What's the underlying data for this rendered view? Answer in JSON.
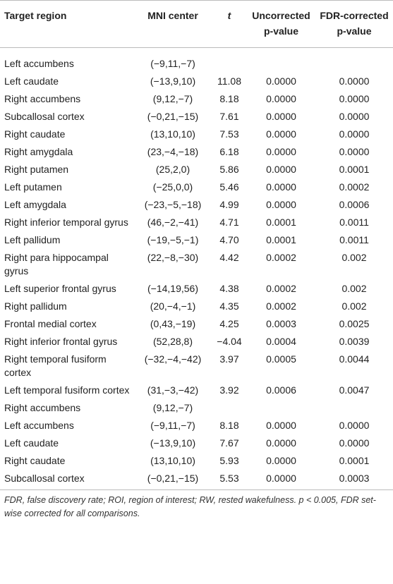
{
  "table": {
    "header": [
      "Target region",
      "MNI center",
      "t",
      [
        "Uncorrected",
        "p-value"
      ],
      [
        "FDR-corrected",
        "p-value"
      ]
    ],
    "rows": [
      [
        "Left accumbens",
        "(−9,11,−7)",
        null,
        null,
        null
      ],
      [
        "Left caudate",
        "(−13,9,10)",
        "11.08",
        "0.0000",
        "0.0000"
      ],
      [
        "Right accumbens",
        "(9,12,−7)",
        "8.18",
        "0.0000",
        "0.0000"
      ],
      [
        "Subcallosal cortex",
        "(−0,21,−15)",
        "7.61",
        "0.0000",
        "0.0000"
      ],
      [
        "Right caudate",
        "(13,10,10)",
        "7.53",
        "0.0000",
        "0.0000"
      ],
      [
        "Right amygdala",
        "(23,−4,−18)",
        "6.18",
        "0.0000",
        "0.0000"
      ],
      [
        "Right putamen",
        "(25,2,0)",
        "5.86",
        "0.0000",
        "0.0001"
      ],
      [
        "Left putamen",
        "(−25,0,0)",
        "5.46",
        "0.0000",
        "0.0002"
      ],
      [
        "Left amygdala",
        "(−23,−5,−18)",
        "4.99",
        "0.0000",
        "0.0006"
      ],
      [
        "Right inferior temporal gyrus",
        "(46,−2,−41)",
        "4.71",
        "0.0001",
        "0.0011"
      ],
      [
        "Left pallidum",
        "(−19,−5,−1)",
        "4.70",
        "0.0001",
        "0.0011"
      ],
      [
        "Right para hippocampal gyrus",
        "(22,−8,−30)",
        "4.42",
        "0.0002",
        "0.002"
      ],
      [
        "Left superior frontal gyrus",
        "(−14,19,56)",
        "4.38",
        "0.0002",
        "0.002"
      ],
      [
        "Right pallidum",
        "(20,−4,−1)",
        "4.35",
        "0.0002",
        "0.002"
      ],
      [
        "Frontal medial cortex",
        "(0,43,−19)",
        "4.25",
        "0.0003",
        "0.0025"
      ],
      [
        "Right inferior frontal gyrus",
        "(52,28,8)",
        "−4.04",
        "0.0004",
        "0.0039"
      ],
      [
        "Right temporal fusiform cortex",
        "(−32,−4,−42)",
        "3.97",
        "0.0005",
        "0.0044"
      ],
      [
        "Left temporal fusiform cortex",
        "(31,−3,−42)",
        "3.92",
        "0.0006",
        "0.0047"
      ],
      [
        "Right accumbens",
        "(9,12,−7)",
        null,
        null,
        null
      ],
      [
        "Left accumbens",
        "(−9,11,−7)",
        "8.18",
        "0.0000",
        "0.0000"
      ],
      [
        "Left caudate",
        "(−13,9,10)",
        "7.67",
        "0.0000",
        "0.0000"
      ],
      [
        "Right caudate",
        "(13,10,10)",
        "5.93",
        "0.0000",
        "0.0001"
      ],
      [
        "Subcallosal cortex",
        "(−0,21,−15)",
        "5.53",
        "0.0000",
        "0.0003"
      ]
    ],
    "footnote": "FDR, false discovery rate; ROI, region of interest; RW, rested wakefulness. p < 0.005, FDR set-wise corrected for all comparisons."
  }
}
